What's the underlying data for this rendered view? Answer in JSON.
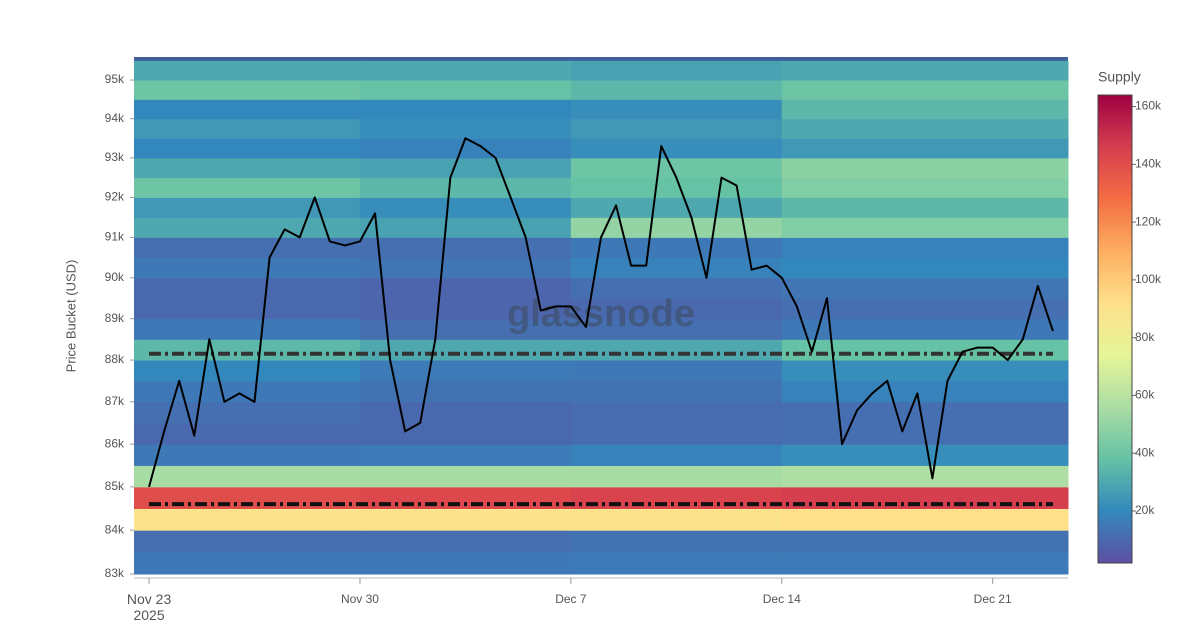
{
  "chart_data": {
    "type": "heatmap",
    "y_label": "Price Bucket (USD)",
    "colorbar_title": "Supply",
    "watermark": "glassnode",
    "log_y": true,
    "ylim": [
      83000,
      95600
    ],
    "yticks": [
      {
        "value": 83000,
        "label": "83k"
      },
      {
        "value": 84000,
        "label": "84k"
      },
      {
        "value": 85000,
        "label": "85k"
      },
      {
        "value": 86000,
        "label": "86k"
      },
      {
        "value": 87000,
        "label": "87k"
      },
      {
        "value": 88000,
        "label": "88k"
      },
      {
        "value": 89000,
        "label": "89k"
      },
      {
        "value": 90000,
        "label": "90k"
      },
      {
        "value": 91000,
        "label": "91k"
      },
      {
        "value": 92000,
        "label": "92k"
      },
      {
        "value": 93000,
        "label": "93k"
      },
      {
        "value": 94000,
        "label": "94k"
      },
      {
        "value": 95000,
        "label": "95k"
      }
    ],
    "xlim": [
      "2025-11-22T12:00",
      "2025-12-23T12:00"
    ],
    "xticks": [
      {
        "value": "2025-11-23",
        "label": "Nov 23\n2025"
      },
      {
        "value": "2025-11-30",
        "label": "Nov 30"
      },
      {
        "value": "2025-12-07",
        "label": "Dec 7"
      },
      {
        "value": "2025-12-14",
        "label": "Dec 14"
      },
      {
        "value": "2025-12-21",
        "label": "Dec 21"
      }
    ],
    "x_bins": [
      "2025-11-22T12:00",
      "2025-11-30T00:00",
      "2025-12-07T00:00",
      "2025-12-14T00:00",
      "2025-12-23T12:00"
    ],
    "y_bins": [
      83000,
      83500,
      84000,
      84500,
      85000,
      85500,
      86000,
      86500,
      87000,
      87500,
      88000,
      88500,
      89000,
      89500,
      90000,
      90500,
      91000,
      91500,
      92000,
      92500,
      93000,
      93500,
      94000,
      94500,
      95000,
      95500
    ],
    "z": [
      [
        15000,
        15000,
        16000,
        16000
      ],
      [
        12000,
        12000,
        13000,
        13000
      ],
      [
        90000,
        90000,
        90000,
        92000
      ],
      [
        140000,
        142000,
        144000,
        146000
      ],
      [
        55000,
        55000,
        55000,
        57000
      ],
      [
        15000,
        16000,
        18000,
        22000
      ],
      [
        10000,
        10000,
        11000,
        12000
      ],
      [
        12000,
        10000,
        11000,
        12000
      ],
      [
        15000,
        13000,
        13000,
        18000
      ],
      [
        20000,
        16000,
        15000,
        22000
      ],
      [
        35000,
        30000,
        30000,
        38000
      ],
      [
        15000,
        12000,
        12000,
        15000
      ],
      [
        10000,
        9000,
        10000,
        12000
      ],
      [
        10000,
        9000,
        12000,
        14000
      ],
      [
        15000,
        14000,
        18000,
        20000
      ],
      [
        12000,
        12000,
        15000,
        18000
      ],
      [
        30000,
        28000,
        50000,
        45000
      ],
      [
        25000,
        22000,
        30000,
        35000
      ],
      [
        40000,
        35000,
        38000,
        45000
      ],
      [
        30000,
        28000,
        40000,
        48000
      ],
      [
        20000,
        18000,
        22000,
        25000
      ],
      [
        25000,
        22000,
        25000,
        30000
      ],
      [
        20000,
        20000,
        22000,
        35000
      ],
      [
        40000,
        38000,
        35000,
        40000
      ],
      [
        30000,
        30000,
        28000,
        30000
      ]
    ],
    "zlim": [
      2000,
      164000
    ],
    "colorscale": [
      "#5e4fa2",
      "#3288bd",
      "#66c2a5",
      "#abdda4",
      "#e6f598",
      "#fee08b",
      "#fdae61",
      "#f46d43",
      "#d53e4f",
      "#9e0142"
    ],
    "zticks": [
      {
        "value": 20000,
        "label": "20k"
      },
      {
        "value": 40000,
        "label": "40k"
      },
      {
        "value": 60000,
        "label": "60k"
      },
      {
        "value": 80000,
        "label": "80k"
      },
      {
        "value": 100000,
        "label": "100k"
      },
      {
        "value": 120000,
        "label": "120k"
      },
      {
        "value": 140000,
        "label": "140k"
      },
      {
        "value": 160000,
        "label": "160k"
      }
    ],
    "reference_lines": [
      {
        "value": 88150,
        "color": "#333333"
      },
      {
        "value": 84600,
        "color": "#111111"
      }
    ],
    "price": {
      "color": "#000000",
      "x": [
        "2025-11-23T00:00",
        "2025-11-23T12:00",
        "2025-11-24T00:00",
        "2025-11-24T12:00",
        "2025-11-25T00:00",
        "2025-11-25T12:00",
        "2025-11-26T00:00",
        "2025-11-26T12:00",
        "2025-11-27T00:00",
        "2025-11-27T12:00",
        "2025-11-28T00:00",
        "2025-11-28T12:00",
        "2025-11-29T00:00",
        "2025-11-29T12:00",
        "2025-11-30T00:00",
        "2025-11-30T12:00",
        "2025-12-01T00:00",
        "2025-12-01T12:00",
        "2025-12-02T00:00",
        "2025-12-02T12:00",
        "2025-12-03T00:00",
        "2025-12-03T12:00",
        "2025-12-04T00:00",
        "2025-12-04T12:00",
        "2025-12-05T00:00",
        "2025-12-05T12:00",
        "2025-12-06T00:00",
        "2025-12-06T12:00",
        "2025-12-07T00:00",
        "2025-12-07T12:00",
        "2025-12-08T00:00",
        "2025-12-08T12:00",
        "2025-12-09T00:00",
        "2025-12-09T12:00",
        "2025-12-10T00:00",
        "2025-12-10T12:00",
        "2025-12-11T00:00",
        "2025-12-11T12:00",
        "2025-12-12T00:00",
        "2025-12-12T12:00",
        "2025-12-13T00:00",
        "2025-12-13T12:00",
        "2025-12-14T00:00",
        "2025-12-14T12:00",
        "2025-12-15T00:00",
        "2025-12-15T12:00",
        "2025-12-16T00:00",
        "2025-12-16T12:00",
        "2025-12-17T00:00",
        "2025-12-17T12:00",
        "2025-12-18T00:00",
        "2025-12-18T12:00",
        "2025-12-19T00:00",
        "2025-12-19T12:00",
        "2025-12-20T00:00",
        "2025-12-20T12:00",
        "2025-12-21T00:00",
        "2025-12-21T12:00",
        "2025-12-22T00:00",
        "2025-12-22T12:00",
        "2025-12-23T00:00"
      ],
      "values": [
        85000,
        86300,
        87500,
        86200,
        88500,
        87000,
        87200,
        87000,
        90500,
        91200,
        91000,
        92000,
        90900,
        90800,
        90900,
        91600,
        88000,
        86300,
        86500,
        88500,
        92500,
        93500,
        93300,
        93000,
        92000,
        91000,
        89200,
        89300,
        89300,
        88800,
        91000,
        91800,
        90300,
        90300,
        93300,
        92500,
        91500,
        90000,
        92500,
        92300,
        90200,
        90300,
        90000,
        89300,
        88200,
        89500,
        86000,
        86800,
        87200,
        87500,
        86300,
        87200,
        85200,
        87500,
        88200,
        88300,
        88300,
        88000,
        88500,
        89800,
        88700
      ]
    }
  }
}
